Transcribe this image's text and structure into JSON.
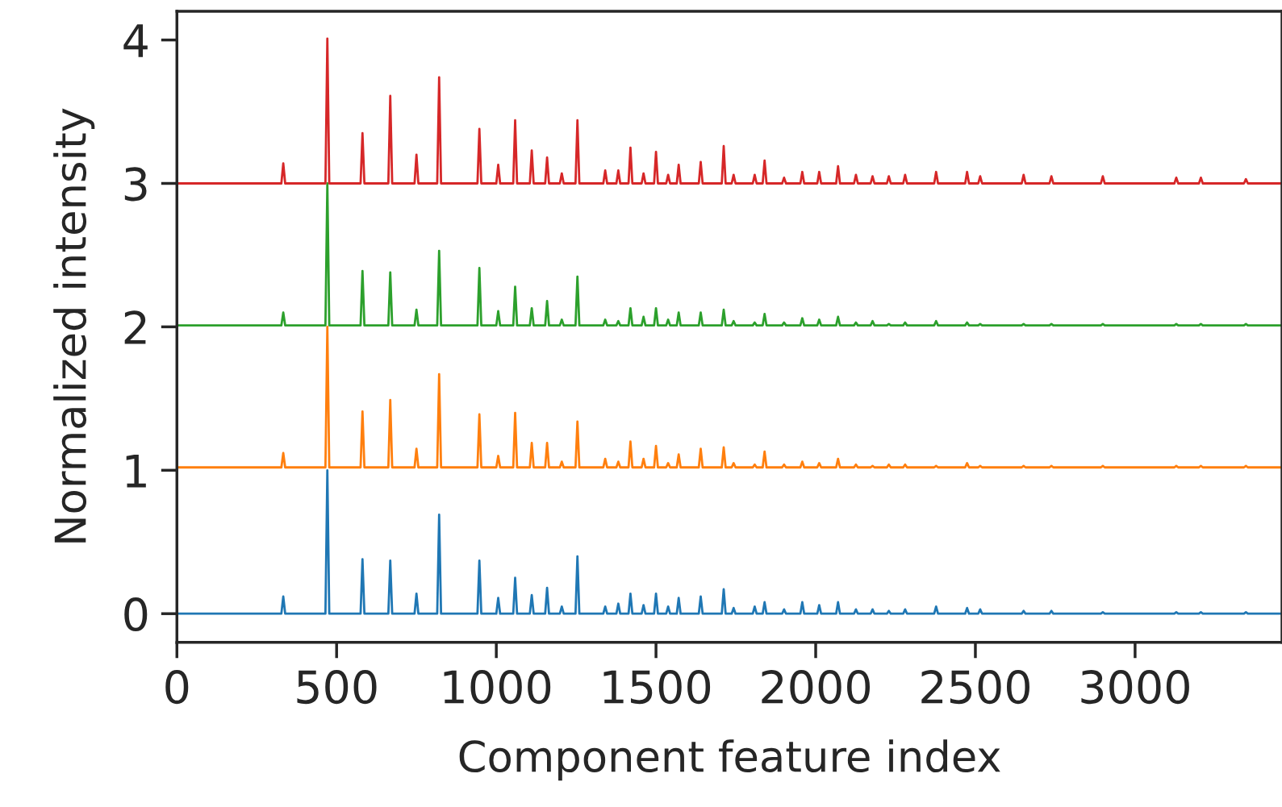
{
  "chart_data": {
    "type": "line",
    "xlabel": "Component feature index",
    "ylabel": "Normalized intensity",
    "xlim": [
      0,
      3460
    ],
    "ylim": [
      -0.2,
      4.2
    ],
    "xticks": [
      0,
      500,
      1000,
      1500,
      2000,
      2500,
      3000
    ],
    "yticks": [
      0,
      1,
      2,
      3,
      4
    ],
    "grid": false,
    "marker": "none",
    "line_style": "solid",
    "x": [
      0,
      327,
      333,
      339,
      465,
      471,
      477,
      575,
      581,
      587,
      662,
      668,
      674,
      744,
      750,
      756,
      815,
      821,
      827,
      941,
      947,
      953,
      1000,
      1006,
      1012,
      1053,
      1059,
      1065,
      1105,
      1111,
      1117,
      1153,
      1159,
      1165,
      1199,
      1205,
      1211,
      1248,
      1254,
      1260,
      1335,
      1341,
      1347,
      1376,
      1382,
      1388,
      1414,
      1420,
      1426,
      1455,
      1461,
      1467,
      1494,
      1500,
      1506,
      1532,
      1538,
      1544,
      1565,
      1571,
      1577,
      1634,
      1640,
      1646,
      1706,
      1712,
      1718,
      1737,
      1743,
      1749,
      1803,
      1809,
      1815,
      1834,
      1840,
      1846,
      1895,
      1901,
      1907,
      1952,
      1958,
      1964,
      2005,
      2011,
      2017,
      2064,
      2070,
      2076,
      2120,
      2126,
      2132,
      2172,
      2178,
      2184,
      2223,
      2229,
      2235,
      2274,
      2280,
      2286,
      2371,
      2377,
      2383,
      2468,
      2474,
      2480,
      2509,
      2515,
      2521,
      2645,
      2651,
      2657,
      2732,
      2738,
      2744,
      2893,
      2899,
      2905,
      3123,
      3129,
      3135,
      3200,
      3206,
      3212,
      3341,
      3347,
      3353,
      3460
    ],
    "series": [
      {
        "color": "#1f77b4",
        "values": [
          0,
          0,
          0.12,
          0,
          0,
          1.0,
          0,
          0,
          0.38,
          0,
          0,
          0.37,
          0,
          0,
          0.14,
          0,
          0,
          0.69,
          0,
          0,
          0.37,
          0,
          0,
          0.11,
          0,
          0,
          0.25,
          0,
          0,
          0.13,
          0,
          0,
          0.18,
          0,
          0,
          0.05,
          0,
          0,
          0.4,
          0,
          0,
          0.05,
          0,
          0,
          0.07,
          0,
          0,
          0.14,
          0,
          0,
          0.06,
          0,
          0,
          0.14,
          0,
          0,
          0.05,
          0,
          0,
          0.11,
          0,
          0,
          0.12,
          0,
          0,
          0.17,
          0,
          0,
          0.04,
          0,
          0,
          0.05,
          0,
          0,
          0.08,
          0,
          0,
          0.03,
          0,
          0,
          0.08,
          0,
          0,
          0.06,
          0,
          0,
          0.08,
          0,
          0,
          0.03,
          0,
          0,
          0.03,
          0,
          0,
          0.02,
          0,
          0,
          0.03,
          0,
          0,
          0.05,
          0,
          0,
          0.04,
          0,
          0,
          0.03,
          0,
          0,
          0.02,
          0,
          0,
          0.02,
          0,
          0,
          0.01,
          0,
          0,
          0.01,
          0,
          0,
          0.01,
          0,
          0,
          0.01,
          0,
          0
        ]
      },
      {
        "color": "#ff7f0e",
        "values": [
          1.02,
          1.02,
          1.12,
          1.02,
          1.02,
          2.0,
          1.02,
          1.02,
          1.41,
          1.02,
          1.02,
          1.49,
          1.02,
          1.02,
          1.15,
          1.02,
          1.02,
          1.67,
          1.02,
          1.02,
          1.39,
          1.02,
          1.02,
          1.1,
          1.02,
          1.02,
          1.4,
          1.02,
          1.02,
          1.19,
          1.02,
          1.02,
          1.19,
          1.02,
          1.02,
          1.06,
          1.02,
          1.02,
          1.34,
          1.02,
          1.02,
          1.08,
          1.02,
          1.02,
          1.06,
          1.02,
          1.02,
          1.2,
          1.02,
          1.02,
          1.08,
          1.02,
          1.02,
          1.17,
          1.02,
          1.02,
          1.05,
          1.02,
          1.02,
          1.11,
          1.02,
          1.02,
          1.15,
          1.02,
          1.02,
          1.16,
          1.02,
          1.02,
          1.05,
          1.02,
          1.02,
          1.04,
          1.02,
          1.02,
          1.13,
          1.02,
          1.02,
          1.04,
          1.02,
          1.02,
          1.06,
          1.02,
          1.02,
          1.05,
          1.02,
          1.02,
          1.08,
          1.02,
          1.02,
          1.04,
          1.02,
          1.02,
          1.03,
          1.02,
          1.02,
          1.04,
          1.02,
          1.02,
          1.04,
          1.02,
          1.02,
          1.03,
          1.02,
          1.02,
          1.05,
          1.02,
          1.02,
          1.03,
          1.02,
          1.02,
          1.03,
          1.02,
          1.02,
          1.03,
          1.02,
          1.02,
          1.03,
          1.02,
          1.02,
          1.03,
          1.02,
          1.02,
          1.03,
          1.02,
          1.02,
          1.03,
          1.02,
          1.02
        ]
      },
      {
        "color": "#2ca02c",
        "values": [
          2.01,
          2.01,
          2.1,
          2.01,
          2.01,
          3.0,
          2.01,
          2.01,
          2.39,
          2.01,
          2.01,
          2.38,
          2.01,
          2.01,
          2.12,
          2.01,
          2.01,
          2.53,
          2.01,
          2.01,
          2.41,
          2.01,
          2.01,
          2.11,
          2.01,
          2.01,
          2.28,
          2.01,
          2.01,
          2.13,
          2.01,
          2.01,
          2.18,
          2.01,
          2.01,
          2.05,
          2.01,
          2.01,
          2.35,
          2.01,
          2.01,
          2.05,
          2.01,
          2.01,
          2.04,
          2.01,
          2.01,
          2.13,
          2.01,
          2.01,
          2.07,
          2.01,
          2.01,
          2.13,
          2.01,
          2.01,
          2.05,
          2.01,
          2.01,
          2.1,
          2.01,
          2.01,
          2.1,
          2.01,
          2.01,
          2.12,
          2.01,
          2.01,
          2.04,
          2.01,
          2.01,
          2.03,
          2.01,
          2.01,
          2.09,
          2.01,
          2.01,
          2.03,
          2.01,
          2.01,
          2.06,
          2.01,
          2.01,
          2.05,
          2.01,
          2.01,
          2.07,
          2.01,
          2.01,
          2.03,
          2.01,
          2.01,
          2.04,
          2.01,
          2.01,
          2.02,
          2.01,
          2.01,
          2.03,
          2.01,
          2.01,
          2.04,
          2.01,
          2.01,
          2.03,
          2.01,
          2.01,
          2.02,
          2.01,
          2.01,
          2.02,
          2.01,
          2.01,
          2.02,
          2.01,
          2.01,
          2.02,
          2.01,
          2.01,
          2.02,
          2.01,
          2.01,
          2.02,
          2.01,
          2.01,
          2.02,
          2.01,
          2.01
        ]
      },
      {
        "color": "#d62728",
        "values": [
          3.0,
          3.0,
          3.14,
          3.0,
          3.0,
          4.01,
          3.0,
          3.0,
          3.35,
          3.0,
          3.0,
          3.61,
          3.0,
          3.0,
          3.2,
          3.0,
          3.0,
          3.74,
          3.0,
          3.0,
          3.38,
          3.0,
          3.0,
          3.13,
          3.0,
          3.0,
          3.44,
          3.0,
          3.0,
          3.23,
          3.0,
          3.0,
          3.18,
          3.0,
          3.0,
          3.07,
          3.0,
          3.0,
          3.44,
          3.0,
          3.0,
          3.09,
          3.0,
          3.0,
          3.09,
          3.0,
          3.0,
          3.25,
          3.0,
          3.0,
          3.07,
          3.0,
          3.0,
          3.22,
          3.0,
          3.0,
          3.06,
          3.0,
          3.0,
          3.13,
          3.0,
          3.0,
          3.15,
          3.0,
          3.0,
          3.26,
          3.0,
          3.0,
          3.06,
          3.0,
          3.0,
          3.06,
          3.0,
          3.0,
          3.16,
          3.0,
          3.0,
          3.04,
          3.0,
          3.0,
          3.08,
          3.0,
          3.0,
          3.08,
          3.0,
          3.0,
          3.12,
          3.0,
          3.0,
          3.06,
          3.0,
          3.0,
          3.05,
          3.0,
          3.0,
          3.05,
          3.0,
          3.0,
          3.06,
          3.0,
          3.0,
          3.08,
          3.0,
          3.0,
          3.08,
          3.0,
          3.0,
          3.05,
          3.0,
          3.0,
          3.06,
          3.0,
          3.0,
          3.05,
          3.0,
          3.0,
          3.05,
          3.0,
          3.0,
          3.04,
          3.0,
          3.0,
          3.04,
          3.0,
          3.0,
          3.03,
          3.0,
          3.0
        ]
      }
    ]
  }
}
